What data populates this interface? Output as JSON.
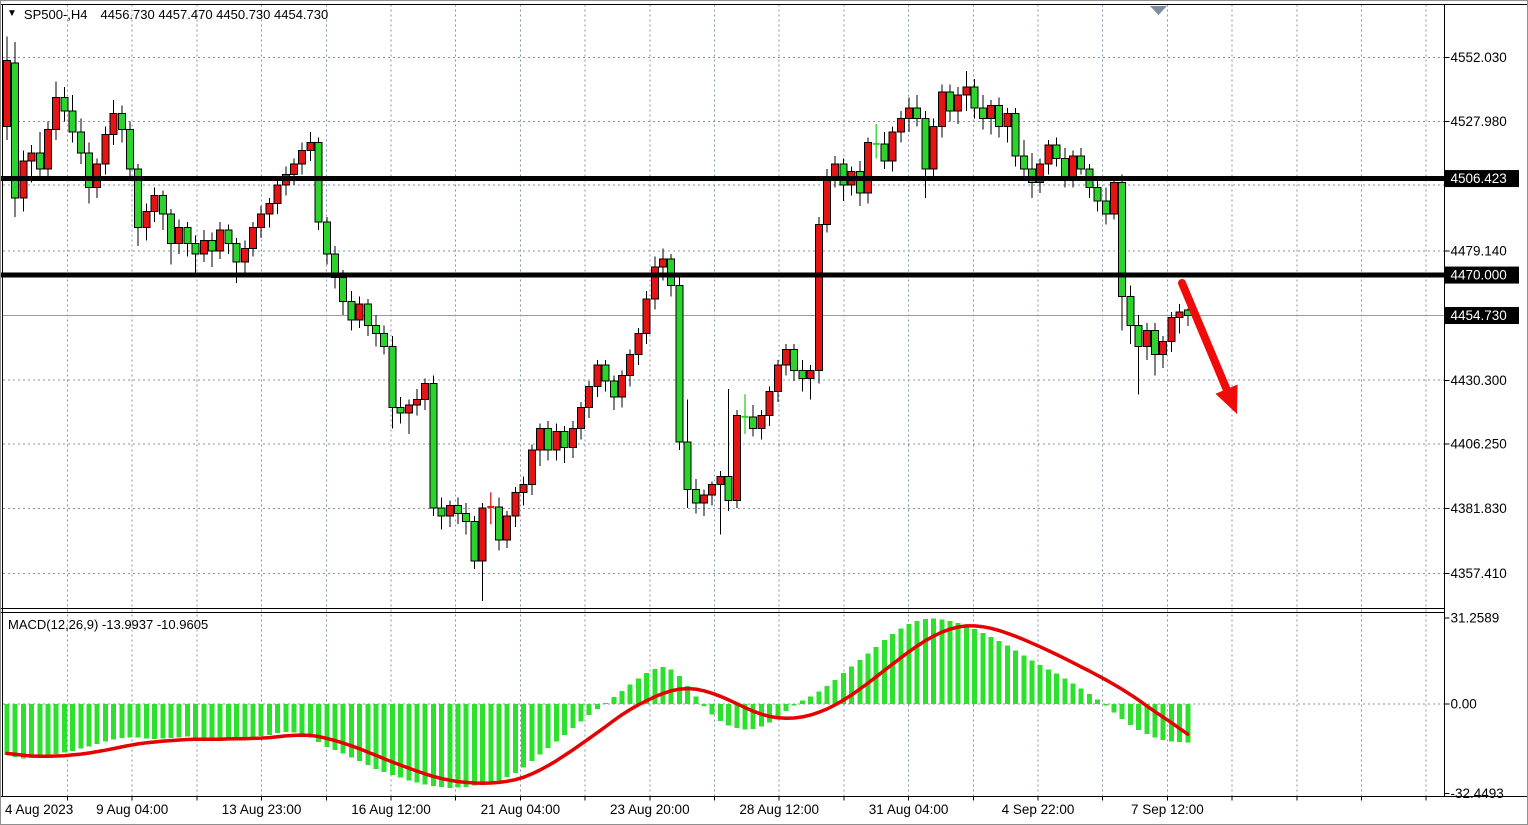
{
  "header": {
    "symbol_period": "SP500-,H4",
    "ohlc_line": "4456.730 4457.470 4450.730 4454.730",
    "dropdown_triangle": "▼"
  },
  "colors": {
    "bull_up_candle": "#e41414",
    "bear_down_candle": "#2cd32c",
    "wick": "#000000",
    "macd_histogram": "#2ee02e",
    "macd_signal": "#e60000",
    "grid": "#8295a8",
    "hline": "#000000",
    "current_price_line": "#9a9a9a",
    "arrow": "#f00a0a",
    "highlight_label_bg": "#000000",
    "highlight_label_text": "#ffffff",
    "axis_text": "#000000"
  },
  "price_axis": {
    "ticks": [
      {
        "label": "4552.030",
        "price": 4552.03,
        "highlight": false
      },
      {
        "label": "4527.980",
        "price": 4527.98,
        "highlight": false
      },
      {
        "label": "4506.423",
        "price": 4506.423,
        "highlight": true
      },
      {
        "label": "4479.140",
        "price": 4479.14,
        "highlight": false
      },
      {
        "label": "4470.000",
        "price": 4470.0,
        "highlight": true
      },
      {
        "label": "4454.730",
        "price": 4454.73,
        "highlight": true
      },
      {
        "label": "4430.300",
        "price": 4430.3,
        "highlight": false
      },
      {
        "label": "4406.250",
        "price": 4406.25,
        "highlight": false
      },
      {
        "label": "4381.830",
        "price": 4381.83,
        "highlight": false
      },
      {
        "label": "4357.410",
        "price": 4357.41,
        "highlight": false
      }
    ]
  },
  "macd_axis": {
    "ticks": [
      {
        "label": "31.2589",
        "value": 31.2589
      },
      {
        "label": "0.00",
        "value": 0.0
      },
      {
        "label": "-32.4493",
        "value": -32.4493
      }
    ]
  },
  "time_axis": {
    "labels": [
      "4 Aug 2023",
      "9 Aug 04:00",
      "13 Aug 23:00",
      "16 Aug 12:00",
      "21 Aug 04:00",
      "23 Aug 20:00",
      "28 Aug 12:00",
      "31 Aug 04:00",
      "4 Sep 22:00",
      "7 Sep 12:00"
    ]
  },
  "objects": {
    "horizontal_lines": [
      {
        "price": 4506.423
      },
      {
        "price": 4470.0
      }
    ],
    "current_price": 4454.73,
    "arrow": {
      "from": [
        1181,
        282
      ],
      "to": [
        1236,
        413
      ]
    }
  },
  "chart_data": [
    {
      "type": "candlestick",
      "title": "SP500-,H4",
      "timeframe": "H4",
      "current_bar": {
        "open": 4456.73,
        "high": 4457.47,
        "low": 4450.73,
        "close": 4454.73
      },
      "ylim": [
        4344.0,
        4574.0
      ],
      "up_is_red": true,
      "ohlc": [
        [
          4526,
          4560,
          4521,
          4551
        ],
        [
          4550,
          4558,
          4492,
          4499
        ],
        [
          4499,
          4517,
          4494,
          4513
        ],
        [
          4513,
          4519,
          4505,
          4516
        ],
        [
          4516,
          4524,
          4506,
          4510
        ],
        [
          4510,
          4528,
          4507,
          4525
        ],
        [
          4525,
          4543,
          4521,
          4537
        ],
        [
          4537,
          4541,
          4528,
          4532
        ],
        [
          4532,
          4538,
          4520,
          4524
        ],
        [
          4524,
          4529,
          4512,
          4516
        ],
        [
          4516,
          4520,
          4497,
          4503
        ],
        [
          4503,
          4514,
          4499,
          4512
        ],
        [
          4512,
          4526,
          4508,
          4523
        ],
        [
          4523,
          4536,
          4519,
          4531
        ],
        [
          4531,
          4534,
          4520,
          4525
        ],
        [
          4525,
          4528,
          4507,
          4510
        ],
        [
          4510,
          4512,
          4481,
          4488
        ],
        [
          4488,
          4497,
          4483,
          4494
        ],
        [
          4494,
          4503,
          4490,
          4500
        ],
        [
          4500,
          4502,
          4487,
          4493
        ],
        [
          4493,
          4495,
          4474,
          4482
        ],
        [
          4482,
          4491,
          4478,
          4488
        ],
        [
          4488,
          4490,
          4477,
          4482
        ],
        [
          4482,
          4485,
          4470,
          4478
        ],
        [
          4478,
          4487,
          4475,
          4483
        ],
        [
          4483,
          4486,
          4473,
          4479
        ],
        [
          4479,
          4490,
          4476,
          4487
        ],
        [
          4487,
          4489,
          4478,
          4482
        ],
        [
          4482,
          4484,
          4467,
          4475
        ],
        [
          4475,
          4483,
          4471,
          4480
        ],
        [
          4480,
          4490,
          4477,
          4488
        ],
        [
          4488,
          4496,
          4484,
          4493
        ],
        [
          4493,
          4499,
          4488,
          4497
        ],
        [
          4497,
          4507,
          4493,
          4504
        ],
        [
          4504,
          4511,
          4500,
          4508
        ],
        [
          4508,
          4514,
          4504,
          4512
        ],
        [
          4512,
          4520,
          4508,
          4517
        ],
        [
          4517,
          4524,
          4513,
          4520
        ],
        [
          4520,
          4522,
          4487,
          4490
        ],
        [
          4490,
          4492,
          4474,
          4478
        ],
        [
          4478,
          4481,
          4465,
          4469
        ],
        [
          4469,
          4472,
          4455,
          4460
        ],
        [
          4460,
          4464,
          4449,
          4453
        ],
        [
          4453,
          4462,
          4450,
          4459
        ],
        [
          4459,
          4461,
          4447,
          4451
        ],
        [
          4451,
          4455,
          4443,
          4448
        ],
        [
          4448,
          4451,
          4440,
          4443
        ],
        [
          4443,
          4447,
          4412,
          4420
        ],
        [
          4420,
          4424,
          4414,
          4418
        ],
        [
          4418,
          4423,
          4410,
          4421
        ],
        [
          4421,
          4427,
          4417,
          4423
        ],
        [
          4423,
          4431,
          4419,
          4429
        ],
        [
          4429,
          4432,
          4379,
          4382
        ],
        [
          4382,
          4386,
          4374,
          4379
        ],
        [
          4379,
          4385,
          4375,
          4383
        ],
        [
          4383,
          4386,
          4376,
          4380
        ],
        [
          4380,
          4384,
          4372,
          4377
        ],
        [
          4377,
          4379,
          4359,
          4362
        ],
        [
          4362,
          4384,
          4347,
          4382
        ],
        [
          4382,
          4388,
          4376,
          4382.5
        ],
        [
          4382.5,
          4386,
          4366,
          4370
        ],
        [
          4370,
          4381,
          4367,
          4379
        ],
        [
          4379,
          4390,
          4375,
          4388
        ],
        [
          4388,
          4394,
          4383,
          4391
        ],
        [
          4391,
          4406,
          4387,
          4404
        ],
        [
          4404,
          4414,
          4398,
          4412
        ],
        [
          4412,
          4415,
          4400,
          4404
        ],
        [
          4404,
          4414,
          4400,
          4411
        ],
        [
          4411,
          4413,
          4399,
          4405
        ],
        [
          4405,
          4415,
          4401,
          4412
        ],
        [
          4412,
          4422,
          4408,
          4420
        ],
        [
          4420,
          4430,
          4416,
          4428
        ],
        [
          4428,
          4438,
          4424,
          4436
        ],
        [
          4436,
          4438,
          4426,
          4430
        ],
        [
          4430,
          4432,
          4419,
          4424
        ],
        [
          4424,
          4434,
          4420,
          4432
        ],
        [
          4432,
          4442,
          4428,
          4440
        ],
        [
          4440,
          4450,
          4436,
          4448
        ],
        [
          4448,
          4464,
          4444,
          4461
        ],
        [
          4461,
          4477,
          4457,
          4473
        ],
        [
          4473,
          4480,
          4468,
          4476
        ],
        [
          4476,
          4478,
          4462,
          4466
        ],
        [
          4466,
          4470,
          4404,
          4407
        ],
        [
          4407,
          4423,
          4382,
          4389
        ],
        [
          4389,
          4393,
          4380,
          4384
        ],
        [
          4384,
          4389,
          4379,
          4387
        ],
        [
          4387,
          4392,
          4383,
          4391
        ],
        [
          4391,
          4396,
          4372,
          4394
        ],
        [
          4394,
          4427,
          4381,
          4385
        ],
        [
          4385,
          4419,
          4382,
          4417
        ],
        [
          4417,
          4425,
          4410,
          4416.5
        ],
        [
          4416.5,
          4421,
          4409,
          4412
        ],
        [
          4412,
          4419,
          4408,
          4417
        ],
        [
          4417,
          4428,
          4413,
          4426
        ],
        [
          4426,
          4438,
          4422,
          4436
        ],
        [
          4436,
          4444,
          4432,
          4442
        ],
        [
          4442,
          4444,
          4430,
          4434
        ],
        [
          4434,
          4438,
          4426,
          4431
        ],
        [
          4431,
          4436,
          4423,
          4434
        ],
        [
          4434,
          4492,
          4429,
          4489
        ],
        [
          4489,
          4510,
          4486,
          4507
        ],
        [
          4507,
          4515,
          4503,
          4512
        ],
        [
          4512,
          4514,
          4498,
          4504
        ],
        [
          4504,
          4511,
          4500,
          4509
        ],
        [
          4509,
          4513,
          4496,
          4501
        ],
        [
          4501,
          4522,
          4497,
          4520
        ],
        [
          4520,
          4527,
          4514,
          4519.5
        ],
        [
          4519.5,
          4524,
          4510,
          4513
        ],
        [
          4513,
          4526,
          4509,
          4524
        ],
        [
          4524,
          4532,
          4520,
          4529
        ],
        [
          4529,
          4537,
          4524,
          4533
        ],
        [
          4533,
          4538,
          4526,
          4529
        ],
        [
          4529,
          4532,
          4499,
          4510
        ],
        [
          4510,
          4529,
          4506,
          4526
        ],
        [
          4526,
          4542,
          4522,
          4539
        ],
        [
          4539,
          4542,
          4528,
          4532
        ],
        [
          4532,
          4541,
          4527,
          4538
        ],
        [
          4538,
          4547,
          4532,
          4541
        ],
        [
          4541,
          4544,
          4529,
          4533
        ],
        [
          4533,
          4538,
          4525,
          4529
        ],
        [
          4529,
          4536,
          4523,
          4534
        ],
        [
          4534,
          4537,
          4522,
          4526
        ],
        [
          4526,
          4533,
          4520,
          4531
        ],
        [
          4531,
          4533,
          4511,
          4515
        ],
        [
          4515,
          4521,
          4506,
          4510
        ],
        [
          4510,
          4516,
          4499,
          4505
        ],
        [
          4505,
          4514,
          4501,
          4512
        ],
        [
          4512,
          4521,
          4508,
          4519
        ],
        [
          4519,
          4522,
          4511,
          4514
        ],
        [
          4514,
          4518,
          4503,
          4507
        ],
        [
          4507,
          4517,
          4503,
          4515
        ],
        [
          4515,
          4518,
          4508,
          4510
        ],
        [
          4510,
          4512,
          4499,
          4503
        ],
        [
          4503,
          4507,
          4494,
          4498
        ],
        [
          4498,
          4503,
          4489,
          4493
        ],
        [
          4493,
          4507,
          4491,
          4505
        ],
        [
          4505,
          4508,
          4449,
          4462
        ],
        [
          4462,
          4466,
          4444,
          4451
        ],
        [
          4451,
          4455,
          4425,
          4443
        ],
        [
          4443,
          4452,
          4438,
          4449
        ],
        [
          4449,
          4452,
          4432,
          4440
        ],
        [
          4440,
          4447,
          4435,
          4445
        ],
        [
          4445,
          4456,
          4441,
          4454
        ],
        [
          4454,
          4459,
          4448,
          4456
        ],
        [
          4456.73,
          4457.47,
          4450.73,
          4454.73
        ]
      ]
    },
    {
      "type": "bar",
      "name": "MACD(12,26,9)",
      "label": "MACD(12,26,9) -13.9937 -10.9605",
      "main_value": -13.9937,
      "signal_value": -10.9605,
      "ylim": [
        -32.4493,
        31.2589
      ],
      "histogram": [
        -18.5,
        -19.3,
        -19.8,
        -19.6,
        -19.2,
        -18.8,
        -18.2,
        -17.6,
        -17.0,
        -16.2,
        -15.4,
        -14.5,
        -13.6,
        -12.9,
        -12.4,
        -12.1,
        -12.2,
        -12.5,
        -12.8,
        -12.6,
        -12.4,
        -12.1,
        -11.9,
        -12.2,
        -12.6,
        -12.9,
        -12.7,
        -12.3,
        -12.0,
        -12.3,
        -12.1,
        -11.7,
        -11.2,
        -10.6,
        -10.1,
        -10.4,
        -11.0,
        -12.2,
        -13.8,
        -15.6,
        -16.8,
        -18.0,
        -19.4,
        -20.8,
        -22.2,
        -23.6,
        -24.8,
        -25.8,
        -26.8,
        -27.8,
        -28.6,
        -29.3,
        -29.8,
        -30.2,
        -30.5,
        -30.4,
        -30.1,
        -29.7,
        -29.2,
        -28.6,
        -27.8,
        -26.6,
        -25.0,
        -23.0,
        -20.8,
        -18.4,
        -16.0,
        -13.6,
        -11.2,
        -8.8,
        -6.4,
        -4.0,
        -1.8,
        0.4,
        2.6,
        4.8,
        7.0,
        9.2,
        11.2,
        12.8,
        13.4,
        12.6,
        10.2,
        6.6,
        2.8,
        -0.8,
        -3.8,
        -6.2,
        -7.8,
        -8.8,
        -9.2,
        -9.0,
        -8.2,
        -6.8,
        -4.8,
        -2.6,
        -0.6,
        1.2,
        2.8,
        4.6,
        6.6,
        8.8,
        11.2,
        13.6,
        16.0,
        18.4,
        20.8,
        23.2,
        25.4,
        27.4,
        29.0,
        30.2,
        30.9,
        31.1,
        30.8,
        30.2,
        29.4,
        28.4,
        27.2,
        25.8,
        24.4,
        22.9,
        21.2,
        19.4,
        17.6,
        15.8,
        14.2,
        12.6,
        11.0,
        9.2,
        7.4,
        5.6,
        3.6,
        1.6,
        -0.6,
        -3.0,
        -5.4,
        -7.6,
        -9.4,
        -10.9,
        -12.1,
        -13.0,
        -13.6,
        -13.9,
        -13.9937
      ],
      "signal": [
        -18.0,
        -18.3,
        -18.6,
        -18.9,
        -19.0,
        -19.0,
        -18.9,
        -18.8,
        -18.5,
        -18.2,
        -17.8,
        -17.3,
        -16.8,
        -16.2,
        -15.6,
        -15.0,
        -14.5,
        -14.1,
        -13.8,
        -13.5,
        -13.3,
        -13.1,
        -12.9,
        -12.8,
        -12.8,
        -12.8,
        -12.8,
        -12.7,
        -12.6,
        -12.6,
        -12.5,
        -12.4,
        -12.2,
        -11.9,
        -11.6,
        -11.4,
        -11.3,
        -11.4,
        -11.8,
        -12.5,
        -13.3,
        -14.2,
        -15.2,
        -16.3,
        -17.5,
        -18.7,
        -19.9,
        -21.1,
        -22.2,
        -23.3,
        -24.4,
        -25.4,
        -26.3,
        -27.1,
        -27.7,
        -28.2,
        -28.5,
        -28.7,
        -28.8,
        -28.7,
        -28.5,
        -28.1,
        -27.5,
        -26.6,
        -25.4,
        -24.0,
        -22.4,
        -20.6,
        -18.7,
        -16.7,
        -14.6,
        -12.5,
        -10.4,
        -8.2,
        -6.0,
        -3.9,
        -2.0,
        -0.3,
        1.2,
        2.6,
        3.8,
        4.8,
        5.4,
        5.6,
        5.4,
        4.8,
        3.9,
        2.8,
        1.5,
        0.1,
        -1.3,
        -2.6,
        -3.7,
        -4.5,
        -5.0,
        -5.2,
        -5.1,
        -4.7,
        -4.0,
        -3.0,
        -1.8,
        -0.3,
        1.4,
        3.3,
        5.4,
        7.6,
        9.9,
        12.2,
        14.5,
        16.8,
        19.0,
        21.1,
        23.0,
        24.7,
        26.1,
        27.2,
        28.0,
        28.4,
        28.4,
        28.1,
        27.5,
        26.7,
        25.7,
        24.6,
        23.4,
        22.1,
        20.8,
        19.4,
        18.0,
        16.5,
        15.0,
        13.5,
        12.0,
        10.4,
        8.8,
        7.1,
        5.3,
        3.4,
        1.4,
        -0.7,
        -2.8,
        -4.8,
        -6.8,
        -8.9,
        -10.9605
      ]
    }
  ]
}
